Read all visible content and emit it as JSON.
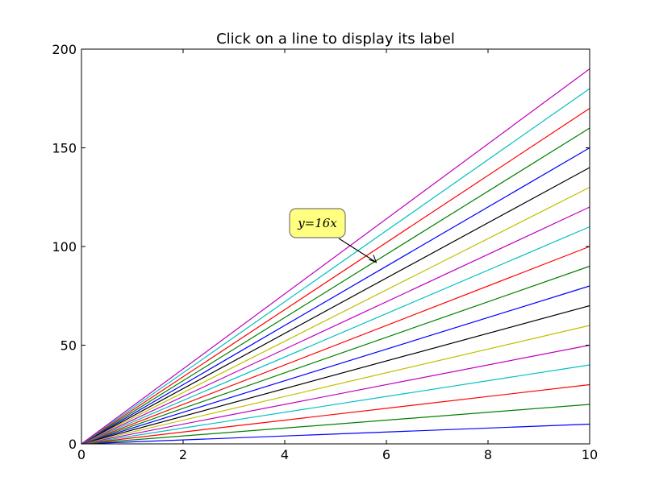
{
  "chart_data": {
    "type": "line",
    "title": "Click on a line to display its label",
    "xlabel": "",
    "ylabel": "",
    "xlim": [
      0,
      10
    ],
    "ylim": [
      0,
      200
    ],
    "xticks": [
      0,
      2,
      4,
      6,
      8,
      10
    ],
    "yticks": [
      0,
      50,
      100,
      150,
      200
    ],
    "grid": false,
    "x": [
      0,
      10
    ],
    "series": [
      {
        "values": [
          0,
          10
        ],
        "color": "#0000ff"
      },
      {
        "values": [
          0,
          20
        ],
        "color": "#008000"
      },
      {
        "values": [
          0,
          30
        ],
        "color": "#ff0000"
      },
      {
        "values": [
          0,
          40
        ],
        "color": "#00bfbf"
      },
      {
        "values": [
          0,
          50
        ],
        "color": "#bf00bf"
      },
      {
        "values": [
          0,
          60
        ],
        "color": "#bfbf00"
      },
      {
        "values": [
          0,
          70
        ],
        "color": "#000000"
      },
      {
        "values": [
          0,
          80
        ],
        "color": "#0000ff"
      },
      {
        "values": [
          0,
          90
        ],
        "color": "#008000"
      },
      {
        "values": [
          0,
          100
        ],
        "color": "#ff0000"
      },
      {
        "values": [
          0,
          110
        ],
        "color": "#00bfbf"
      },
      {
        "values": [
          0,
          120
        ],
        "color": "#bf00bf"
      },
      {
        "values": [
          0,
          130
        ],
        "color": "#bfbf00"
      },
      {
        "values": [
          0,
          140
        ],
        "color": "#000000"
      },
      {
        "values": [
          0,
          150
        ],
        "color": "#0000ff"
      },
      {
        "values": [
          0,
          160
        ],
        "color": "#008000"
      },
      {
        "values": [
          0,
          170
        ],
        "color": "#ff0000"
      },
      {
        "values": [
          0,
          180
        ],
        "color": "#00bfbf"
      },
      {
        "values": [
          0,
          190
        ],
        "color": "#bf00bf"
      }
    ],
    "annotation": {
      "text": "y=16x",
      "point": [
        5.8,
        92
      ],
      "box_color": "#ffff80"
    }
  }
}
